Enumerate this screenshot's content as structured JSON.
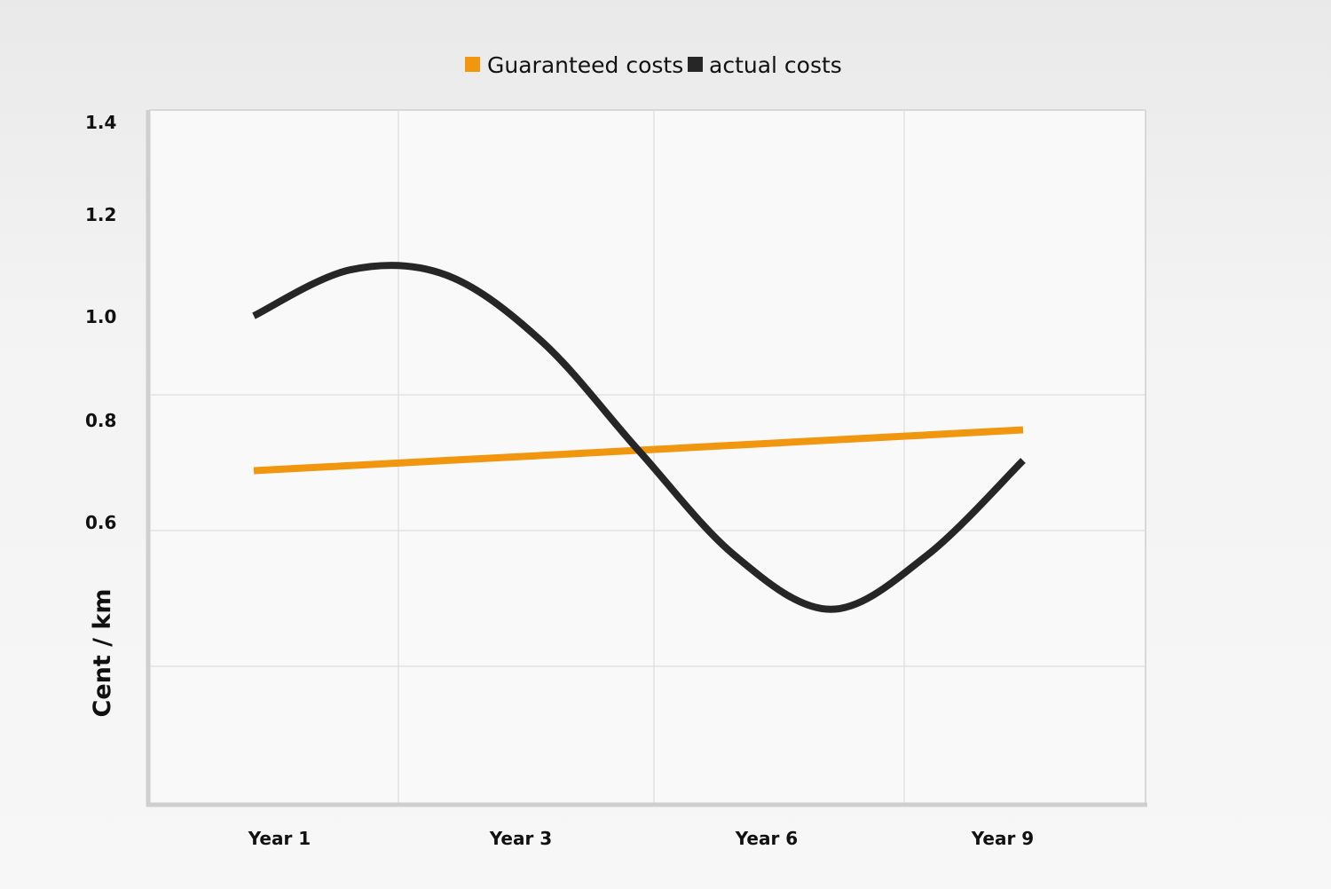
{
  "chart_data": {
    "type": "line",
    "title": "",
    "xlabel": "",
    "ylabel": "Cent / km",
    "categories": [
      "Year 1",
      "Year 3",
      "Year 6",
      "Year 9"
    ],
    "y_ticks": [
      "1.4",
      "1.2",
      "1.0",
      "0.8",
      "0.6"
    ],
    "legend_position": "top-center",
    "grid": true,
    "series": [
      {
        "name": "Guaranteed costs",
        "color": "#f0960f",
        "x": [
          1,
          2,
          3,
          4,
          5,
          6,
          7,
          8,
          9
        ],
        "y": [
          0.7,
          0.71,
          0.72,
          0.73,
          0.74,
          0.75,
          0.76,
          0.77,
          0.78
        ]
      },
      {
        "name": "actual costs",
        "color": "#262626",
        "x": [
          1,
          2,
          3,
          4,
          5,
          6,
          7,
          8,
          9
        ],
        "y": [
          1.0,
          1.09,
          1.08,
          0.95,
          0.74,
          0.55,
          0.47,
          0.55,
          0.72
        ]
      }
    ]
  }
}
